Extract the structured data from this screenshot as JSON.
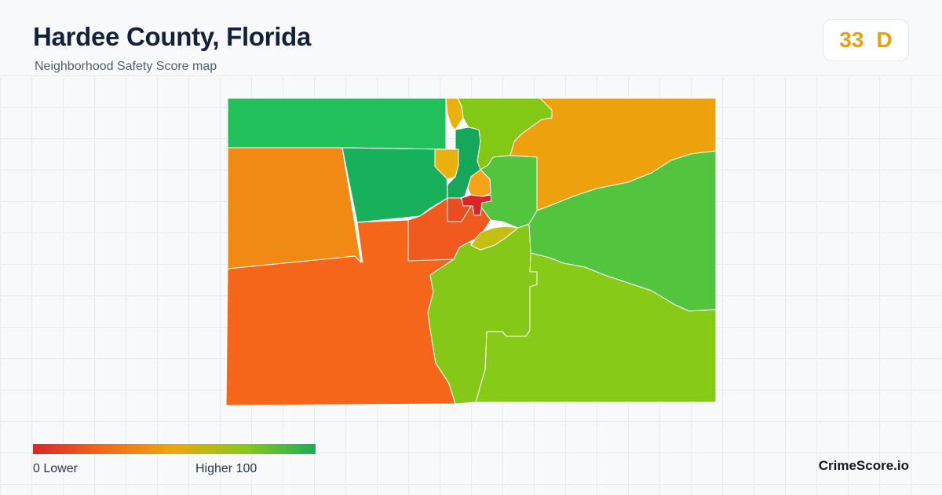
{
  "header": {
    "title": "Hardee County, Florida",
    "subtitle": "Neighborhood Safety Score map"
  },
  "score": {
    "value": "33",
    "grade": "D",
    "color": "#e9a00d"
  },
  "legend": {
    "min_label": "0  Lower",
    "max_label": "Higher  100",
    "gradient_colors": [
      "#d9262b",
      "#f26a1b",
      "#eaa90c",
      "#8bc81a",
      "#1aae5a"
    ]
  },
  "brand": "CrimeScore.io",
  "map": {
    "regions": [
      {
        "name": "north-west-block",
        "color": "#22c05a"
      },
      {
        "name": "west-block",
        "color": "#f08a15"
      },
      {
        "name": "north-central-block",
        "color": "#18b05a"
      },
      {
        "name": "south-west-block",
        "color": "#f5661a"
      },
      {
        "name": "central-south-block",
        "color": "#f05a1e"
      },
      {
        "name": "north-strip-block",
        "color": "#84c816"
      },
      {
        "name": "north-east-block",
        "color": "#eca10d"
      },
      {
        "name": "east-block",
        "color": "#52c43e"
      },
      {
        "name": "south-east-block",
        "color": "#88ca18"
      },
      {
        "name": "central-east-block",
        "color": "#52c43e"
      },
      {
        "name": "south-central-block",
        "color": "#86c818"
      },
      {
        "name": "town-core-block",
        "color": "#d9262b"
      },
      {
        "name": "town-south-block",
        "color": "#ec4c22"
      },
      {
        "name": "town-north-block",
        "color": "#16a85a"
      },
      {
        "name": "town-east-block",
        "color": "#f5a317"
      },
      {
        "name": "town-yellow-block",
        "color": "#eab10c"
      },
      {
        "name": "town-olive-block",
        "color": "#c4bf14"
      },
      {
        "name": "north-narrow-block",
        "color": "#eab10c"
      }
    ]
  }
}
